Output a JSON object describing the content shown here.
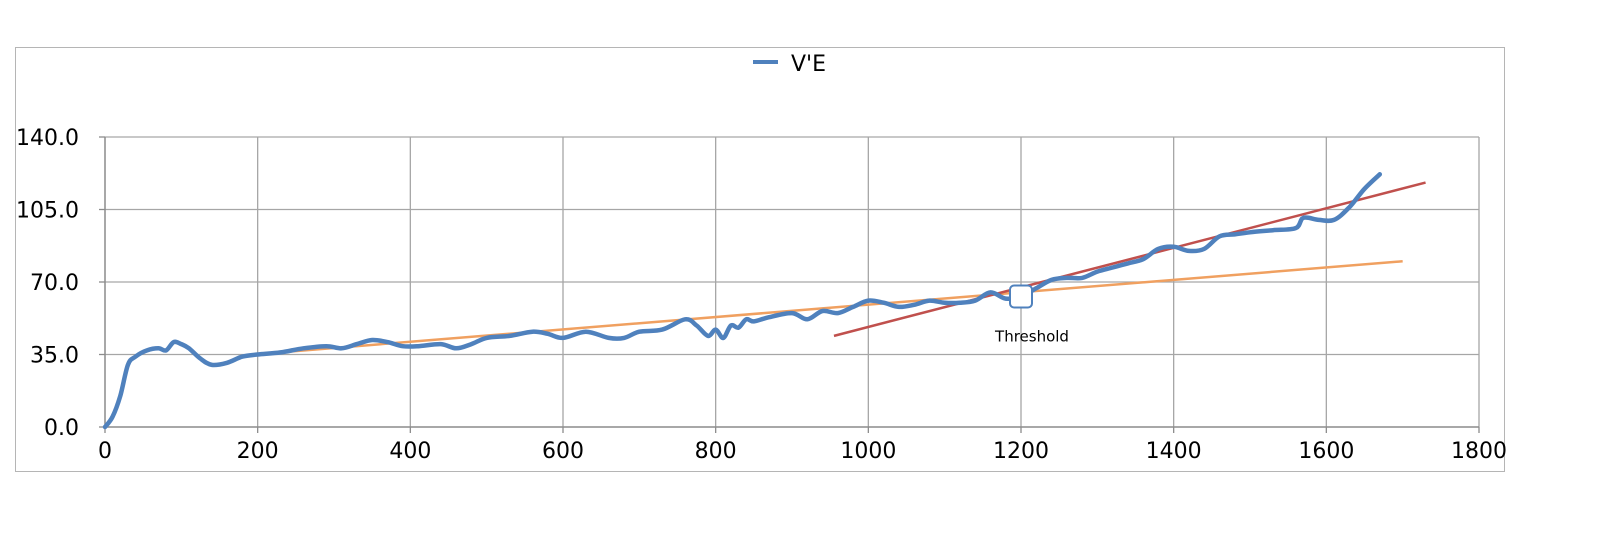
{
  "chart_data": {
    "type": "line",
    "title": "",
    "xlabel": "",
    "ylabel": "",
    "xlim": [
      0,
      1800
    ],
    "ylim": [
      0,
      140
    ],
    "x_ticks": [
      "0",
      "200",
      "400",
      "600",
      "800",
      "1000",
      "1200",
      "1400",
      "1600",
      "1800"
    ],
    "x_tick_values": [
      0,
      200,
      400,
      600,
      800,
      1000,
      1200,
      1400,
      1600,
      1800
    ],
    "y_ticks": [
      "0.0",
      "35.0",
      "70.0",
      "105.0",
      "140.0"
    ],
    "y_tick_values": [
      0,
      35,
      70,
      105,
      140
    ],
    "grid": true,
    "legend": {
      "placement": "top-center",
      "entries": [
        "V'E"
      ]
    },
    "series": [
      {
        "name": "V'E",
        "color": "#4f81bd",
        "x": [
          0,
          10,
          20,
          30,
          40,
          55,
          70,
          80,
          90,
          100,
          110,
          125,
          140,
          160,
          180,
          200,
          230,
          260,
          290,
          310,
          330,
          350,
          370,
          390,
          410,
          440,
          460,
          480,
          500,
          530,
          560,
          580,
          600,
          630,
          660,
          680,
          700,
          730,
          760,
          775,
          790,
          800,
          810,
          820,
          830,
          840,
          850,
          870,
          900,
          920,
          940,
          960,
          980,
          1000,
          1020,
          1040,
          1060,
          1080,
          1100,
          1120,
          1140,
          1160,
          1180,
          1200,
          1220,
          1240,
          1260,
          1280,
          1300,
          1320,
          1340,
          1360,
          1380,
          1400,
          1420,
          1440,
          1460,
          1480,
          1500,
          1530,
          1560,
          1570,
          1590,
          1610,
          1630,
          1650,
          1670
        ],
        "y": [
          0,
          5,
          15,
          30,
          34,
          37,
          38,
          37,
          41,
          40,
          38,
          33,
          30,
          31,
          34,
          35,
          36,
          38,
          39,
          38,
          40,
          42,
          41,
          39,
          39,
          40,
          38,
          40,
          43,
          44,
          46,
          45,
          43,
          46,
          43,
          43,
          46,
          47,
          52,
          49,
          44,
          47,
          43,
          49,
          48,
          52,
          51,
          53,
          55,
          52,
          56,
          55,
          58,
          61,
          60,
          58,
          59,
          61,
          60,
          60,
          61,
          65,
          62,
          63,
          67,
          71,
          72,
          72,
          75,
          77,
          79,
          81,
          86,
          87,
          85,
          86,
          92,
          93,
          94,
          95,
          96,
          101,
          100,
          100,
          106,
          115,
          122
        ]
      }
    ],
    "trendlines": [
      {
        "color": "#f0a060",
        "x": [
          195,
          1700
        ],
        "y": [
          35,
          80
        ]
      },
      {
        "color": "#c0504d",
        "x": [
          955,
          1730
        ],
        "y": [
          44,
          118
        ]
      }
    ],
    "annotations": [
      {
        "label": "Threshold",
        "x": 1200,
        "y": 63
      }
    ]
  }
}
